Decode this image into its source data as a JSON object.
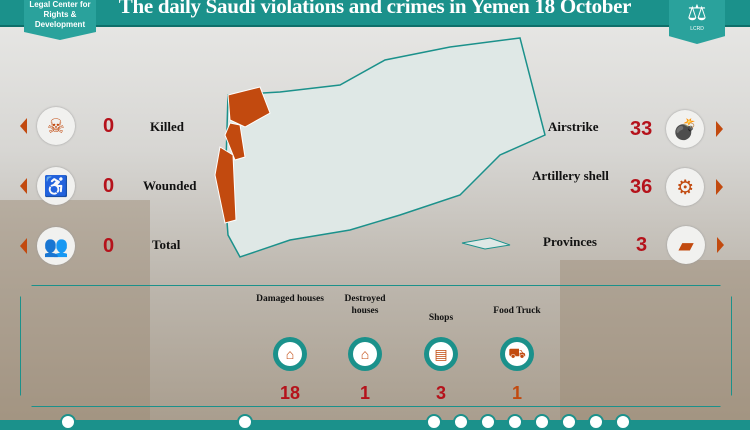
{
  "header": {
    "title": "The daily Saudi violations and crimes in Yemen 18 October",
    "org_name": "Legal Center for Rights & Development",
    "logo_text": "LCRD"
  },
  "casualties": [
    {
      "label": "Killed",
      "value": "0",
      "icon": "dead-body-icon"
    },
    {
      "label": "Wounded",
      "value": "0",
      "icon": "injured-person-icon"
    },
    {
      "label": "Total",
      "value": "0",
      "icon": "people-icon"
    }
  ],
  "attacks": [
    {
      "label": "Airstrike",
      "value": "33",
      "icon": "bombs-icon"
    },
    {
      "label": "Artillery shell",
      "value": "36",
      "icon": "cannon-icon"
    },
    {
      "label": "Provinces",
      "value": "3",
      "icon": "yemen-map-icon"
    }
  ],
  "damage": [
    {
      "label": "Damaged houses",
      "value": "18",
      "icon": "house-icon"
    },
    {
      "label": "Destroyed houses",
      "value": "1",
      "icon": "destroyed-house-icon"
    },
    {
      "label": "Shops",
      "value": "3",
      "icon": "shop-icon"
    },
    {
      "label": "Food Truck",
      "value": "1",
      "icon": "truck-icon"
    }
  ],
  "colors": {
    "teal": "#1b918b",
    "orange": "#c24a0f",
    "red": "#b5121b"
  }
}
